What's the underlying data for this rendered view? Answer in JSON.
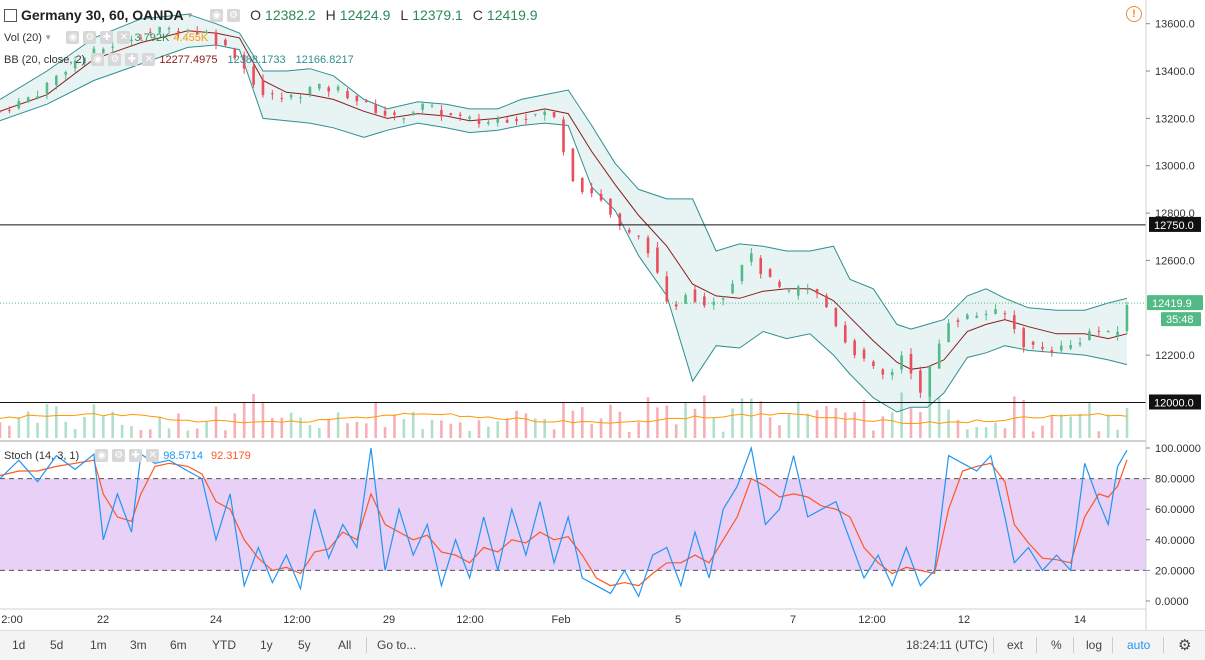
{
  "header": {
    "symbol": "Germany 30, 60, OANDA",
    "o_label": "O",
    "o_value": "12382.2",
    "h_label": "H",
    "h_value": "12424.9",
    "l_label": "L",
    "l_value": "12379.1",
    "c_label": "C",
    "c_value": "12419.9"
  },
  "vol_legend": {
    "name": "Vol (20)",
    "v1": "3.792K",
    "v2": "4.455K"
  },
  "bb_legend": {
    "name": "BB (20, close, 2)",
    "basis": "12277.4975",
    "upper": "12388.1733",
    "lower": "12166.8217"
  },
  "stoch_legend": {
    "name": "Stoch (14, 3, 1)",
    "k": "98.5714",
    "d": "92.3179"
  },
  "colors": {
    "up": "#53b987",
    "down": "#eb4d5c",
    "bb_fill": "#e8f4f4",
    "bb_band": "#2f8f8f",
    "bb_basis": "#8b1c1c",
    "stoch_k": "#2196f3",
    "stoch_d": "#ff5722",
    "stoch_bg": "#e8d0f7",
    "vol_ma": "#ff9800",
    "accent": "#2196f3"
  },
  "price_axis": {
    "ticks": [
      "13600.0",
      "13400.0",
      "13200.0",
      "13000.0",
      "12800.0",
      "12600.0",
      "12200.0"
    ],
    "hline_labels": [
      "12750.0",
      "12000.0"
    ],
    "last_price": "12419.9",
    "countdown": "35:48"
  },
  "stoch_axis": {
    "ticks": [
      "100.0000",
      "80.0000",
      "60.0000",
      "40.0000",
      "20.0000",
      "0.0000"
    ]
  },
  "time_axis": {
    "labels": [
      "2:00",
      "22",
      "24",
      "12:00",
      "29",
      "12:00",
      "Feb",
      "5",
      "7",
      "12:00",
      "12",
      "14"
    ]
  },
  "bottom_bar": {
    "ranges": [
      "1d",
      "5d",
      "1m",
      "3m",
      "6m",
      "YTD",
      "1y",
      "5y",
      "All"
    ],
    "goto": "Go to...",
    "clock": "18:24:11 (UTC)",
    "ext": "ext",
    "pct": "%",
    "log": "log",
    "auto": "auto"
  },
  "chart_data": {
    "type": "candlestick",
    "title": "Germany 30, 60, OANDA",
    "price_range": [
      11850,
      13700
    ],
    "horizontal_lines": [
      12750,
      12000
    ],
    "last_close": 12419.9,
    "price_path": [
      [
        0,
        13230
      ],
      [
        15,
        13300
      ],
      [
        30,
        13430
      ],
      [
        45,
        13500
      ],
      [
        60,
        13560
      ],
      [
        75,
        13580
      ],
      [
        88,
        13560
      ],
      [
        100,
        13470
      ],
      [
        112,
        13300
      ],
      [
        122,
        13280
      ],
      [
        133,
        13330
      ],
      [
        145,
        13320
      ],
      [
        157,
        13250
      ],
      [
        168,
        13200
      ],
      [
        180,
        13250
      ],
      [
        192,
        13210
      ],
      [
        205,
        13180
      ],
      [
        215,
        13200
      ],
      [
        225,
        13210
      ],
      [
        235,
        13230
      ],
      [
        245,
        12920
      ],
      [
        255,
        12870
      ],
      [
        265,
        12720
      ],
      [
        275,
        12680
      ],
      [
        285,
        12380
      ],
      [
        292,
        12470
      ],
      [
        300,
        12420
      ],
      [
        310,
        12470
      ],
      [
        318,
        12640
      ],
      [
        326,
        12530
      ],
      [
        335,
        12450
      ],
      [
        342,
        12490
      ],
      [
        350,
        12440
      ],
      [
        360,
        12260
      ],
      [
        370,
        12150
      ],
      [
        378,
        12100
      ],
      [
        385,
        12220
      ],
      [
        392,
        12030
      ],
      [
        398,
        12200
      ],
      [
        404,
        12350
      ],
      [
        412,
        12360
      ],
      [
        420,
        12380
      ],
      [
        428,
        12370
      ],
      [
        436,
        12250
      ],
      [
        445,
        12220
      ],
      [
        456,
        12240
      ],
      [
        466,
        12310
      ],
      [
        475,
        12270
      ],
      [
        480,
        12419.9
      ]
    ],
    "bollinger_upper_path": [
      [
        0,
        13280
      ],
      [
        20,
        13400
      ],
      [
        40,
        13540
      ],
      [
        60,
        13620
      ],
      [
        80,
        13640
      ],
      [
        92,
        13600
      ],
      [
        102,
        13560
      ],
      [
        112,
        13400
      ],
      [
        122,
        13400
      ],
      [
        132,
        13410
      ],
      [
        142,
        13380
      ],
      [
        155,
        13280
      ],
      [
        165,
        13240
      ],
      [
        178,
        13270
      ],
      [
        190,
        13260
      ],
      [
        200,
        13240
      ],
      [
        212,
        13240
      ],
      [
        222,
        13280
      ],
      [
        232,
        13300
      ],
      [
        242,
        13320
      ],
      [
        252,
        13170
      ],
      [
        262,
        13010
      ],
      [
        272,
        12900
      ],
      [
        284,
        12860
      ],
      [
        295,
        12860
      ],
      [
        305,
        12640
      ],
      [
        315,
        12670
      ],
      [
        325,
        12660
      ],
      [
        335,
        12640
      ],
      [
        345,
        12640
      ],
      [
        355,
        12660
      ],
      [
        362,
        12520
      ],
      [
        372,
        12480
      ],
      [
        382,
        12330
      ],
      [
        388,
        12310
      ],
      [
        395,
        12330
      ],
      [
        402,
        12350
      ],
      [
        412,
        12450
      ],
      [
        420,
        12480
      ],
      [
        428,
        12440
      ],
      [
        438,
        12400
      ],
      [
        450,
        12390
      ],
      [
        462,
        12390
      ],
      [
        472,
        12420
      ],
      [
        480,
        12440
      ]
    ],
    "bollinger_lower_path": [
      [
        0,
        13190
      ],
      [
        20,
        13260
      ],
      [
        40,
        13360
      ],
      [
        60,
        13430
      ],
      [
        80,
        13500
      ],
      [
        92,
        13510
      ],
      [
        102,
        13490
      ],
      [
        112,
        13200
      ],
      [
        122,
        13190
      ],
      [
        132,
        13180
      ],
      [
        142,
        13160
      ],
      [
        155,
        13120
      ],
      [
        165,
        13150
      ],
      [
        178,
        13180
      ],
      [
        190,
        13160
      ],
      [
        200,
        13140
      ],
      [
        212,
        13150
      ],
      [
        222,
        13170
      ],
      [
        232,
        13180
      ],
      [
        242,
        13170
      ],
      [
        252,
        12910
      ],
      [
        262,
        12810
      ],
      [
        272,
        12620
      ],
      [
        284,
        12450
      ],
      [
        295,
        12090
      ],
      [
        305,
        12240
      ],
      [
        315,
        12230
      ],
      [
        325,
        12300
      ],
      [
        335,
        12270
      ],
      [
        345,
        12290
      ],
      [
        355,
        12200
      ],
      [
        362,
        12120
      ],
      [
        372,
        12020
      ],
      [
        382,
        11960
      ],
      [
        388,
        11980
      ],
      [
        395,
        11980
      ],
      [
        402,
        12040
      ],
      [
        412,
        12190
      ],
      [
        420,
        12210
      ],
      [
        428,
        12240
      ],
      [
        438,
        12220
      ],
      [
        450,
        12210
      ],
      [
        462,
        12200
      ],
      [
        472,
        12180
      ],
      [
        480,
        12160
      ]
    ],
    "bollinger_basis_path": [
      [
        0,
        13230
      ],
      [
        20,
        13300
      ],
      [
        40,
        13450
      ],
      [
        60,
        13520
      ],
      [
        80,
        13570
      ],
      [
        92,
        13560
      ],
      [
        102,
        13540
      ],
      [
        112,
        13360
      ],
      [
        122,
        13310
      ],
      [
        132,
        13300
      ],
      [
        142,
        13280
      ],
      [
        155,
        13230
      ],
      [
        165,
        13200
      ],
      [
        178,
        13220
      ],
      [
        190,
        13210
      ],
      [
        200,
        13190
      ],
      [
        212,
        13200
      ],
      [
        222,
        13220
      ],
      [
        232,
        13240
      ],
      [
        242,
        13220
      ],
      [
        252,
        13060
      ],
      [
        262,
        12920
      ],
      [
        272,
        12790
      ],
      [
        284,
        12660
      ],
      [
        295,
        12500
      ],
      [
        305,
        12450
      ],
      [
        315,
        12440
      ],
      [
        325,
        12470
      ],
      [
        335,
        12480
      ],
      [
        345,
        12480
      ],
      [
        355,
        12430
      ],
      [
        362,
        12360
      ],
      [
        372,
        12260
      ],
      [
        382,
        12170
      ],
      [
        388,
        12140
      ],
      [
        395,
        12150
      ],
      [
        402,
        12180
      ],
      [
        412,
        12300
      ],
      [
        420,
        12330
      ],
      [
        428,
        12350
      ],
      [
        438,
        12320
      ],
      [
        450,
        12290
      ],
      [
        462,
        12290
      ],
      [
        472,
        12270
      ],
      [
        480,
        12290
      ]
    ],
    "stoch_path_k": [
      [
        0,
        80
      ],
      [
        8,
        92
      ],
      [
        16,
        78
      ],
      [
        24,
        95
      ],
      [
        32,
        86
      ],
      [
        40,
        96
      ],
      [
        44,
        40
      ],
      [
        50,
        70
      ],
      [
        56,
        45
      ],
      [
        60,
        96
      ],
      [
        66,
        90
      ],
      [
        72,
        92
      ],
      [
        80,
        85
      ],
      [
        86,
        80
      ],
      [
        92,
        40
      ],
      [
        98,
        70
      ],
      [
        104,
        10
      ],
      [
        110,
        35
      ],
      [
        116,
        12
      ],
      [
        122,
        30
      ],
      [
        128,
        8
      ],
      [
        134,
        60
      ],
      [
        140,
        28
      ],
      [
        146,
        50
      ],
      [
        152,
        35
      ],
      [
        158,
        100
      ],
      [
        164,
        20
      ],
      [
        170,
        60
      ],
      [
        176,
        30
      ],
      [
        182,
        50
      ],
      [
        188,
        10
      ],
      [
        194,
        40
      ],
      [
        200,
        15
      ],
      [
        206,
        55
      ],
      [
        212,
        20
      ],
      [
        218,
        60
      ],
      [
        224,
        30
      ],
      [
        230,
        65
      ],
      [
        236,
        25
      ],
      [
        242,
        55
      ],
      [
        248,
        15
      ],
      [
        254,
        10
      ],
      [
        260,
        5
      ],
      [
        266,
        20
      ],
      [
        272,
        3
      ],
      [
        278,
        30
      ],
      [
        284,
        35
      ],
      [
        290,
        10
      ],
      [
        296,
        45
      ],
      [
        302,
        15
      ],
      [
        308,
        60
      ],
      [
        314,
        75
      ],
      [
        320,
        100
      ],
      [
        326,
        50
      ],
      [
        332,
        60
      ],
      [
        338,
        95
      ],
      [
        344,
        55
      ],
      [
        350,
        60
      ],
      [
        356,
        65
      ],
      [
        362,
        40
      ],
      [
        368,
        15
      ],
      [
        374,
        30
      ],
      [
        380,
        10
      ],
      [
        386,
        35
      ],
      [
        392,
        10
      ],
      [
        398,
        20
      ],
      [
        404,
        95
      ],
      [
        410,
        90
      ],
      [
        416,
        85
      ],
      [
        422,
        95
      ],
      [
        428,
        55
      ],
      [
        432,
        25
      ],
      [
        438,
        35
      ],
      [
        444,
        20
      ],
      [
        450,
        30
      ],
      [
        456,
        20
      ],
      [
        462,
        90
      ],
      [
        468,
        65
      ],
      [
        472,
        50
      ],
      [
        476,
        88
      ],
      [
        480,
        98.57
      ]
    ],
    "stoch_path_d": [
      [
        0,
        82
      ],
      [
        8,
        85
      ],
      [
        16,
        85
      ],
      [
        24,
        88
      ],
      [
        32,
        90
      ],
      [
        40,
        92
      ],
      [
        44,
        70
      ],
      [
        50,
        55
      ],
      [
        56,
        52
      ],
      [
        60,
        70
      ],
      [
        66,
        88
      ],
      [
        72,
        90
      ],
      [
        80,
        88
      ],
      [
        86,
        83
      ],
      [
        92,
        65
      ],
      [
        98,
        60
      ],
      [
        104,
        40
      ],
      [
        110,
        28
      ],
      [
        116,
        20
      ],
      [
        122,
        22
      ],
      [
        128,
        18
      ],
      [
        134,
        32
      ],
      [
        140,
        34
      ],
      [
        146,
        45
      ],
      [
        152,
        40
      ],
      [
        158,
        70
      ],
      [
        164,
        50
      ],
      [
        170,
        45
      ],
      [
        176,
        40
      ],
      [
        182,
        43
      ],
      [
        188,
        32
      ],
      [
        194,
        30
      ],
      [
        200,
        25
      ],
      [
        206,
        35
      ],
      [
        212,
        32
      ],
      [
        218,
        40
      ],
      [
        224,
        38
      ],
      [
        230,
        45
      ],
      [
        236,
        40
      ],
      [
        242,
        42
      ],
      [
        248,
        30
      ],
      [
        254,
        15
      ],
      [
        260,
        10
      ],
      [
        266,
        12
      ],
      [
        272,
        10
      ],
      [
        278,
        18
      ],
      [
        284,
        25
      ],
      [
        290,
        25
      ],
      [
        296,
        30
      ],
      [
        302,
        25
      ],
      [
        308,
        40
      ],
      [
        314,
        55
      ],
      [
        320,
        80
      ],
      [
        326,
        75
      ],
      [
        332,
        68
      ],
      [
        338,
        70
      ],
      [
        344,
        68
      ],
      [
        350,
        62
      ],
      [
        356,
        60
      ],
      [
        362,
        55
      ],
      [
        368,
        35
      ],
      [
        374,
        25
      ],
      [
        380,
        18
      ],
      [
        386,
        22
      ],
      [
        392,
        20
      ],
      [
        398,
        18
      ],
      [
        404,
        60
      ],
      [
        410,
        85
      ],
      [
        416,
        88
      ],
      [
        422,
        90
      ],
      [
        428,
        78
      ],
      [
        432,
        50
      ],
      [
        438,
        38
      ],
      [
        444,
        28
      ],
      [
        450,
        27
      ],
      [
        456,
        25
      ],
      [
        462,
        55
      ],
      [
        468,
        70
      ],
      [
        472,
        68
      ],
      [
        476,
        75
      ],
      [
        480,
        92.32
      ]
    ]
  }
}
